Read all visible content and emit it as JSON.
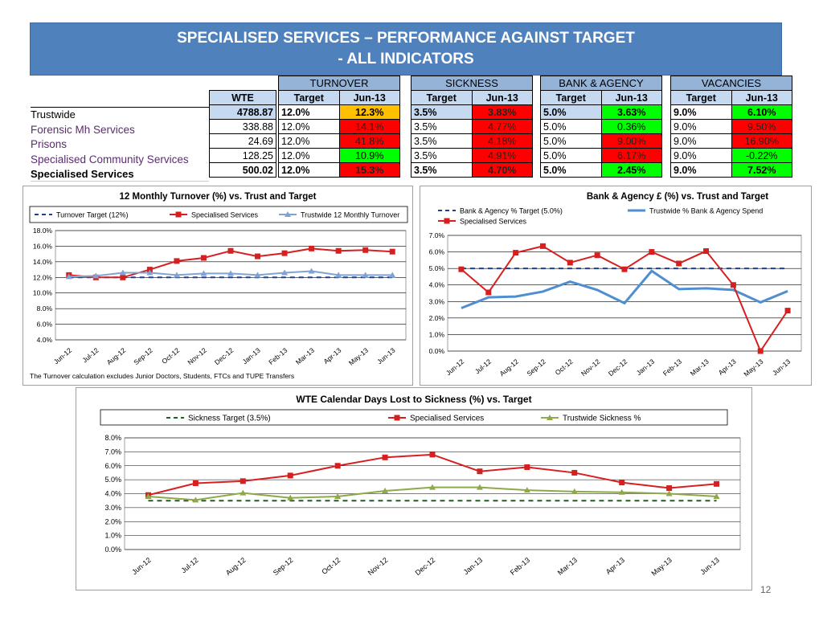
{
  "title": {
    "line1": "SPECIALISED SERVICES – PERFORMANCE AGAINST TARGET",
    "line2": "- ALL INDICATORS"
  },
  "table": {
    "wte_header": "WTE",
    "groups": [
      "TURNOVER",
      "SICKNESS",
      "BANK & AGENCY",
      "VACANCIES"
    ],
    "sub_target": "Target",
    "sub_month": "Jun-13",
    "rows": [
      {
        "name": "Trustwide",
        "wte": "4788.87",
        "turnover": {
          "target": "12.0%",
          "value": "12.3%",
          "status": "warn"
        },
        "sickness": {
          "target": "3.5%",
          "value": "3.83%",
          "status": "bad"
        },
        "bank": {
          "target": "5.0%",
          "value": "3.63%",
          "status": "good"
        },
        "vacancies": {
          "target": "9.0%",
          "value": "6.10%",
          "status": "good"
        }
      },
      {
        "name": "Forensic Mh Services",
        "wte": "338.88",
        "turnover": {
          "target": "12.0%",
          "value": "14.1%",
          "status": "bad"
        },
        "sickness": {
          "target": "3.5%",
          "value": "4.77%",
          "status": "bad"
        },
        "bank": {
          "target": "5.0%",
          "value": "0.36%",
          "status": "good"
        },
        "vacancies": {
          "target": "9.0%",
          "value": "9.50%",
          "status": "bad"
        }
      },
      {
        "name": "Prisons",
        "wte": "24.69",
        "turnover": {
          "target": "12.0%",
          "value": "41.8%",
          "status": "bad"
        },
        "sickness": {
          "target": "3.5%",
          "value": "4.18%",
          "status": "bad"
        },
        "bank": {
          "target": "5.0%",
          "value": "9.00%",
          "status": "bad"
        },
        "vacancies": {
          "target": "9.0%",
          "value": "16.90%",
          "status": "bad"
        }
      },
      {
        "name": "Specialised Community Services",
        "wte": "128.25",
        "turnover": {
          "target": "12.0%",
          "value": "10.9%",
          "status": "good"
        },
        "sickness": {
          "target": "3.5%",
          "value": "4.91%",
          "status": "bad"
        },
        "bank": {
          "target": "5.0%",
          "value": "6.17%",
          "status": "bad"
        },
        "vacancies": {
          "target": "9.0%",
          "value": "-0.22%",
          "status": "good"
        }
      },
      {
        "name": "Specialised Services",
        "wte": "500.02",
        "turnover": {
          "target": "12.0%",
          "value": "15.3%",
          "status": "bad"
        },
        "sickness": {
          "target": "3.5%",
          "value": "4.70%",
          "status": "bad"
        },
        "bank": {
          "target": "5.0%",
          "value": "2.45%",
          "status": "good"
        },
        "vacancies": {
          "target": "9.0%",
          "value": "7.52%",
          "status": "good"
        }
      }
    ]
  },
  "colors": {
    "good": "#00ff00",
    "bad": "#ff0000",
    "warn": "#ffc000",
    "red_series": "#d62020",
    "blue_series": "#4f81bd",
    "green_series": "#8fa84a",
    "banner": "#4f81bd"
  },
  "chart_data": [
    {
      "id": "turnover",
      "type": "line",
      "title": "12 Monthly Turnover (%) vs. Trust and Target",
      "categories": [
        "Jun-12",
        "Jul-12",
        "Aug-12",
        "Sep-12",
        "Oct-12",
        "Nov-12",
        "Dec-12",
        "Jan-13",
        "Feb-13",
        "Mar-13",
        "Apr-13",
        "May-13",
        "Jun-13"
      ],
      "ylim": [
        4.0,
        18.0
      ],
      "yticks": [
        4.0,
        6.0,
        8.0,
        10.0,
        12.0,
        14.0,
        16.0,
        18.0
      ],
      "tick_labels": [
        "4.0%",
        "6.0%",
        "8.0%",
        "10.0%",
        "12.0%",
        "14.0%",
        "16.0%",
        "18.0%"
      ],
      "legend_position": "top",
      "series": [
        {
          "name": "Turnover Target (12%)",
          "style": "dashed",
          "color": "#1f3f8f",
          "values": [
            12,
            12,
            12,
            12,
            12,
            12,
            12,
            12,
            12,
            12,
            12,
            12,
            12
          ]
        },
        {
          "name": "Specialised Services",
          "style": "square",
          "color": "#d62020",
          "values": [
            12.3,
            12.0,
            12.0,
            13.0,
            14.1,
            14.5,
            15.4,
            14.7,
            15.1,
            15.7,
            15.4,
            15.5,
            15.3
          ]
        },
        {
          "name": "Trustwide 12 Monthly Turnover",
          "style": "triangle",
          "color": "#7fa3d4",
          "values": [
            12.1,
            12.2,
            12.6,
            12.6,
            12.3,
            12.5,
            12.5,
            12.3,
            12.6,
            12.8,
            12.3,
            12.3,
            12.3
          ]
        }
      ],
      "footnote": "The Turnover calculation excludes Junior Doctors, Students, FTCs and TUPE Transfers"
    },
    {
      "id": "bank",
      "type": "line",
      "title": "Bank & Agency £ (%) vs. Trust and Target",
      "categories": [
        "Jun-12",
        "Jul-12",
        "Aug-12",
        "Sep-12",
        "Oct-12",
        "Nov-12",
        "Dec-12",
        "Jan-13",
        "Feb-13",
        "Mar-13",
        "Apr-13",
        "May-13",
        "Jun-13"
      ],
      "ylim": [
        0.0,
        7.0
      ],
      "yticks": [
        0,
        1,
        2,
        3,
        4,
        5,
        6,
        7
      ],
      "tick_labels": [
        "0.0%",
        "1.0%",
        "2.0%",
        "3.0%",
        "4.0%",
        "5.0%",
        "6.0%",
        "7.0%"
      ],
      "legend_position": "top",
      "series": [
        {
          "name": "Bank & Agency % Target (5.0%)",
          "style": "dashed",
          "color": "#1f3f8f",
          "values": [
            5,
            5,
            5,
            5,
            5,
            5,
            5,
            5,
            5,
            5,
            5,
            5,
            5
          ]
        },
        {
          "name": "Trustwide % Bank & Agency Spend",
          "style": "plain",
          "color": "#4f8ed0",
          "values": [
            2.6,
            3.25,
            3.3,
            3.6,
            4.2,
            3.7,
            2.9,
            4.85,
            3.75,
            3.8,
            3.7,
            2.95,
            3.63
          ]
        },
        {
          "name": "Specialised Services",
          "style": "square",
          "color": "#d62020",
          "values": [
            4.95,
            3.55,
            5.95,
            6.35,
            5.35,
            5.8,
            4.95,
            6.0,
            5.3,
            6.05,
            4.0,
            -0.1,
            2.45
          ]
        }
      ]
    },
    {
      "id": "sickness",
      "type": "line",
      "title": "WTE Calendar Days Lost to Sickness (%) vs. Target",
      "categories": [
        "Jun-12",
        "Jul-12",
        "Aug-12",
        "Sep-12",
        "Oct-12",
        "Nov-12",
        "Dec-12",
        "Jan-13",
        "Feb-13",
        "Mar-13",
        "Apr-13",
        "May-13",
        "Jun-13"
      ],
      "ylim": [
        0.0,
        8.0
      ],
      "yticks": [
        0,
        1,
        2,
        3,
        4,
        5,
        6,
        7,
        8
      ],
      "tick_labels": [
        "0.0%",
        "1.0%",
        "2.0%",
        "3.0%",
        "4.0%",
        "5.0%",
        "6.0%",
        "7.0%",
        "8.0%"
      ],
      "legend_position": "top",
      "series": [
        {
          "name": "Sickness Target (3.5%)",
          "style": "dashed",
          "color": "#1f5f1f",
          "values": [
            3.5,
            3.5,
            3.5,
            3.5,
            3.5,
            3.5,
            3.5,
            3.5,
            3.5,
            3.5,
            3.5,
            3.5,
            3.5
          ]
        },
        {
          "name": "Specialised Services",
          "style": "square",
          "color": "#d62020",
          "values": [
            3.9,
            4.75,
            4.9,
            5.3,
            6.0,
            6.6,
            6.8,
            5.6,
            5.9,
            5.5,
            4.8,
            4.4,
            4.7
          ]
        },
        {
          "name": "Trustwide Sickness %",
          "style": "triangle",
          "color": "#8fa84a",
          "values": [
            3.8,
            3.55,
            4.05,
            3.7,
            3.8,
            4.2,
            4.45,
            4.45,
            4.25,
            4.15,
            4.1,
            4.0,
            3.8
          ]
        }
      ]
    }
  ],
  "page_number": "12"
}
